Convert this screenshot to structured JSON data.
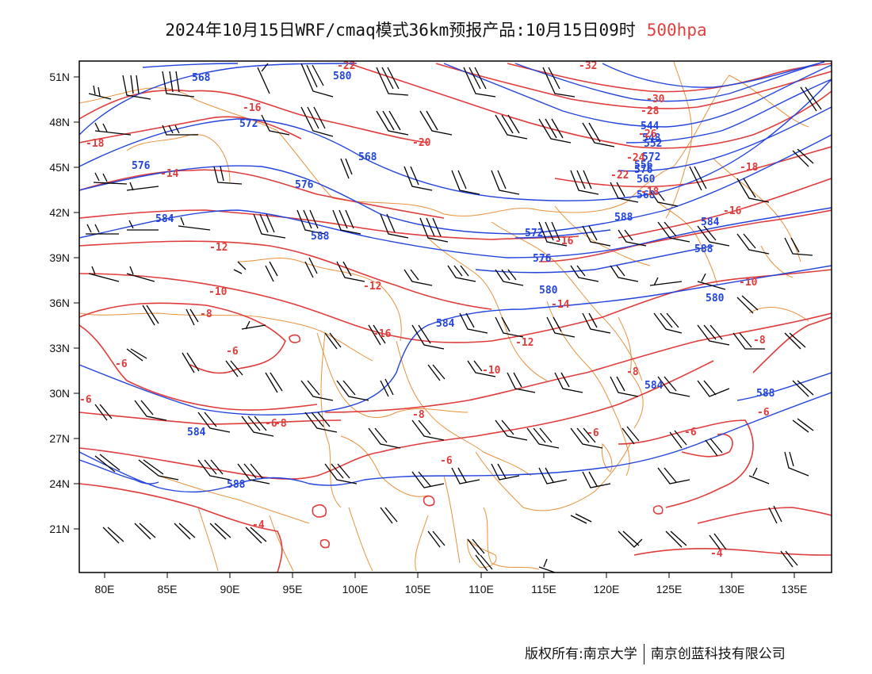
{
  "title": {
    "main": "2024年10月15日WRF/cmaq模式36km预报产品:10月15日09时",
    "level": "500hpa"
  },
  "axes": {
    "lat_labels": [
      "51N",
      "48N",
      "45N",
      "42N",
      "39N",
      "36N",
      "33N",
      "30N",
      "27N",
      "24N",
      "21N"
    ],
    "lon_labels": [
      "80E",
      "85E",
      "90E",
      "95E",
      "100E",
      "105E",
      "110E",
      "115E",
      "120E",
      "125E",
      "130E",
      "135E"
    ],
    "lon_range": [
      78,
      138
    ],
    "lat_range": [
      18,
      52.5
    ]
  },
  "colors": {
    "height_contour": "#2244dd",
    "temperature_contour": "#e03c3c",
    "boundary": "#e8913c",
    "wind_barb": "#000000"
  },
  "height_labels": [
    "568",
    "580",
    "572",
    "568",
    "576",
    "576",
    "584",
    "588",
    "572",
    "576",
    "580",
    "584",
    "588",
    "584",
    "588",
    "580",
    "576",
    "572",
    "568",
    "560",
    "552",
    "544",
    "548",
    "556",
    "584",
    "584",
    "588",
    "588"
  ],
  "temp_labels": [
    "-22",
    "-16",
    "-18",
    "-14",
    "-20",
    "-22",
    "-24",
    "-26",
    "-28",
    "-30",
    "-32",
    "-18",
    "-16",
    "-18",
    "-16",
    "-14",
    "-12",
    "-12",
    "-10",
    "-8",
    "-10",
    "-8",
    "-6",
    "-12",
    "-10",
    "-8",
    "-6",
    "-8",
    "-6",
    "-8",
    "-6",
    "-6",
    "-6",
    "-6",
    "-4",
    "-4",
    "-16",
    "-6"
  ],
  "footer": {
    "left": "版权所有:南京大学",
    "right": "南京创蓝科技有限公司"
  }
}
